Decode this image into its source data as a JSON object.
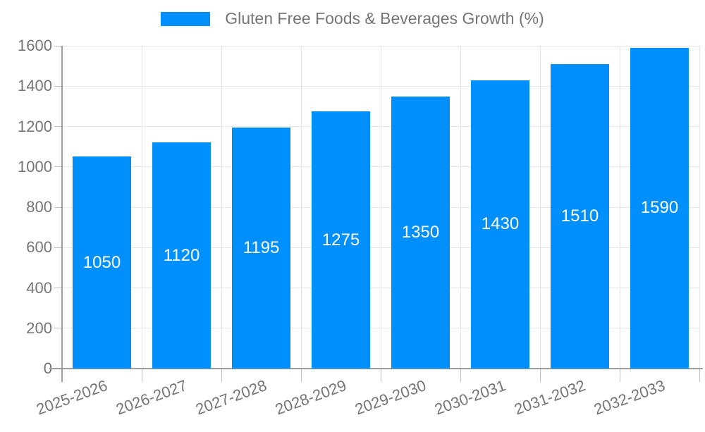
{
  "chart_data": {
    "type": "bar",
    "title": "Gluten Free Foods & Beverages Growth (%)",
    "legend_position": "top",
    "categories": [
      "2025-2026",
      "2026-2027",
      "2027-2028",
      "2028-2029",
      "2029-2030",
      "2030-2031",
      "2031-2032",
      "2032-2033"
    ],
    "values": [
      1050,
      1120,
      1195,
      1275,
      1350,
      1430,
      1510,
      1590
    ],
    "xlabel": "",
    "ylabel": "",
    "ylim": [
      0,
      1600
    ],
    "ytick_step": 200,
    "yticks": [
      0,
      200,
      400,
      600,
      800,
      1000,
      1200,
      1400,
      1600
    ],
    "grid": true,
    "x_label_rotation_deg": -20,
    "value_labels_inside_bars": true,
    "colors": {
      "bar": "#008FFB",
      "value_label": "#ffffff",
      "text": "#757575",
      "grid": "#e6e6e6",
      "axis": "#9e9e9e",
      "tick": "#c2c2c2",
      "background": "#ffffff"
    }
  }
}
